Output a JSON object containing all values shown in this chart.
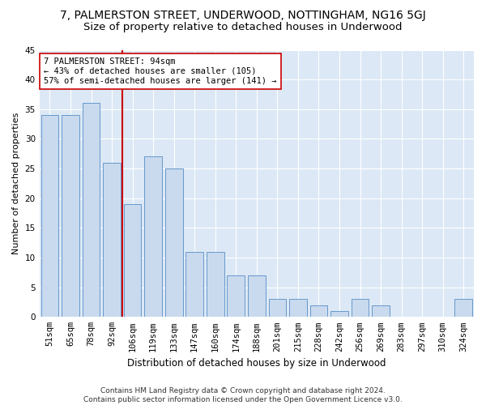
{
  "title": "7, PALMERSTON STREET, UNDERWOOD, NOTTINGHAM, NG16 5GJ",
  "subtitle": "Size of property relative to detached houses in Underwood",
  "xlabel": "Distribution of detached houses by size in Underwood",
  "ylabel": "Number of detached properties",
  "categories": [
    "51sqm",
    "65sqm",
    "78sqm",
    "92sqm",
    "106sqm",
    "119sqm",
    "133sqm",
    "147sqm",
    "160sqm",
    "174sqm",
    "188sqm",
    "201sqm",
    "215sqm",
    "228sqm",
    "242sqm",
    "256sqm",
    "269sqm",
    "283sqm",
    "297sqm",
    "310sqm",
    "324sqm"
  ],
  "values": [
    34,
    34,
    36,
    26,
    19,
    27,
    25,
    11,
    11,
    7,
    7,
    3,
    3,
    2,
    1,
    3,
    2,
    0,
    0,
    0,
    3
  ],
  "bar_color": "#c9d9ee",
  "bar_edge_color": "#6699cc",
  "vline_x": 3.5,
  "vline_color": "#cc0000",
  "annotation_line1": "7 PALMERSTON STREET: 94sqm",
  "annotation_line2": "← 43% of detached houses are smaller (105)",
  "annotation_line3": "57% of semi-detached houses are larger (141) →",
  "annotation_box_color": "white",
  "annotation_box_edge_color": "#cc0000",
  "ylim": [
    0,
    45
  ],
  "yticks": [
    0,
    5,
    10,
    15,
    20,
    25,
    30,
    35,
    40,
    45
  ],
  "footer_text": "Contains HM Land Registry data © Crown copyright and database right 2024.\nContains public sector information licensed under the Open Government Licence v3.0.",
  "plot_bg_color": "#dce8f5",
  "title_fontsize": 10,
  "subtitle_fontsize": 9.5,
  "xlabel_fontsize": 8.5,
  "ylabel_fontsize": 8,
  "tick_fontsize": 7.5,
  "annotation_fontsize": 7.5,
  "footer_fontsize": 6.5
}
